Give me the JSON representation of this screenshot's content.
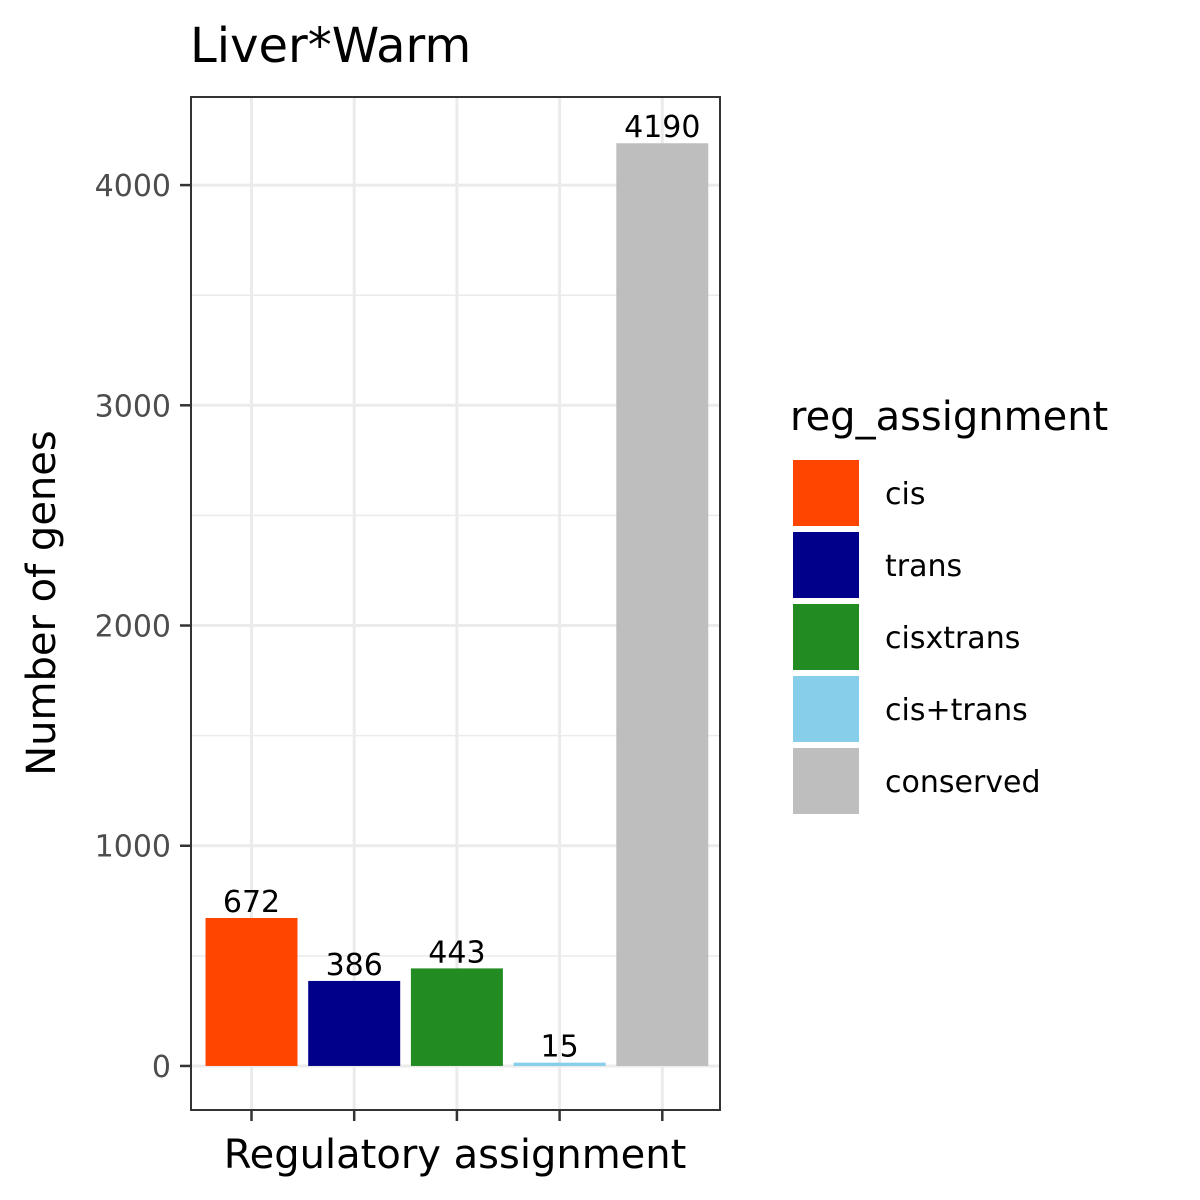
{
  "chart_data": {
    "type": "bar",
    "title": "Liver*Warm",
    "xlabel": "Regulatory assignment",
    "ylabel": "Number of genes",
    "categories": [
      "cis",
      "trans",
      "cisxtrans",
      "cis+trans",
      "conserved"
    ],
    "values": [
      672,
      386,
      443,
      15,
      4190
    ],
    "data_labels": [
      "672",
      "386",
      "443",
      "15",
      "4190"
    ],
    "colors": [
      "#FF4500",
      "#00008B",
      "#228B22",
      "#87CEEB",
      "#BEBEBE"
    ],
    "ylim": [
      -200,
      4400
    ],
    "yticks": [
      0,
      1000,
      2000,
      3000,
      4000
    ],
    "ytick_labels": [
      "0",
      "1000",
      "2000",
      "3000",
      "4000"
    ],
    "yminor": [
      500,
      1500,
      2500,
      3500
    ],
    "grid": true,
    "legend": {
      "title": "reg_assignment",
      "placement": "right",
      "entries": [
        "cis",
        "trans",
        "cisxtrans",
        "cis+trans",
        "conserved"
      ]
    }
  }
}
